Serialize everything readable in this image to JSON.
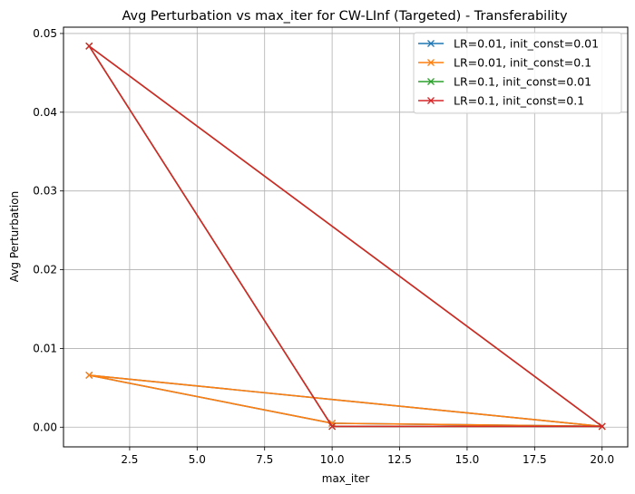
{
  "chart_data": {
    "type": "line",
    "title": "Avg Perturbation vs max_iter for CW-LInf (Targeted) - Transferability",
    "xlabel": "max_iter",
    "ylabel": "Avg Perturbation",
    "xlim": [
      0.05,
      20.95
    ],
    "ylim": [
      -0.0025,
      0.0508
    ],
    "xticks": [
      2.5,
      5.0,
      7.5,
      10.0,
      12.5,
      15.0,
      17.5,
      20.0
    ],
    "xtick_labels": [
      "2.5",
      "5.0",
      "7.5",
      "10.0",
      "12.5",
      "15.0",
      "17.5",
      "20.0"
    ],
    "yticks": [
      0.0,
      0.01,
      0.02,
      0.03,
      0.04,
      0.05
    ],
    "ytick_labels": [
      "0.00",
      "0.01",
      "0.02",
      "0.03",
      "0.04",
      "0.05"
    ],
    "grid": true,
    "legend_position": "top-right",
    "marker": "x",
    "series": [
      {
        "name": "LR=0.01, init_const=0.01",
        "color": "#1f77b4",
        "x": [
          1,
          10,
          20,
          1
        ],
        "y": [
          0.0066,
          0.0005,
          0.0001,
          0.0066
        ]
      },
      {
        "name": "LR=0.01, init_const=0.1",
        "color": "#ff7f0e",
        "x": [
          1,
          10,
          20,
          1
        ],
        "y": [
          0.0066,
          0.0005,
          0.0001,
          0.0066
        ]
      },
      {
        "name": "LR=0.1, init_const=0.01",
        "color": "#2ca02c",
        "x": [
          1,
          10,
          20,
          1
        ],
        "y": [
          0.0484,
          0.0001,
          0.0001,
          0.0484
        ]
      },
      {
        "name": "LR=0.1, init_const=0.1",
        "color": "#d62728",
        "x": [
          1,
          10,
          20,
          1
        ],
        "y": [
          0.0484,
          0.0001,
          0.0001,
          0.0484
        ]
      }
    ]
  }
}
